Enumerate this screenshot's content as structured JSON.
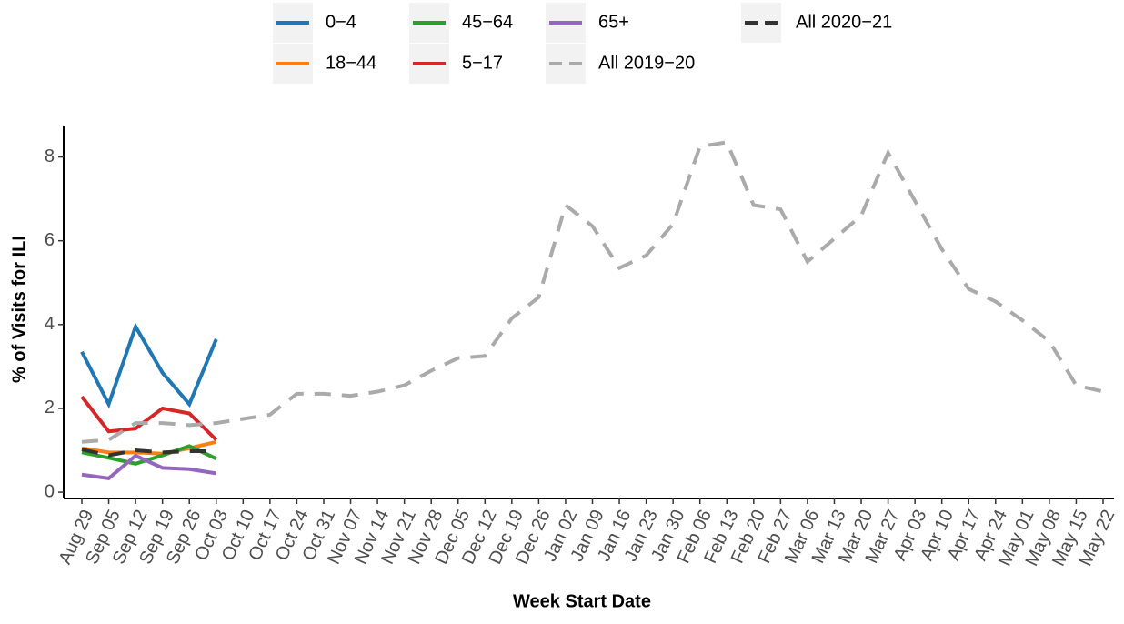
{
  "chart_data": {
    "type": "line",
    "x_label": "Week Start Date",
    "y_label": "% of Visits for ILI",
    "categories": [
      "Aug 29",
      "Sep 05",
      "Sep 12",
      "Sep 19",
      "Sep 26",
      "Oct 03",
      "Oct 10",
      "Oct 17",
      "Oct 24",
      "Oct 31",
      "Nov 07",
      "Nov 14",
      "Nov 21",
      "Nov 28",
      "Dec 05",
      "Dec 12",
      "Dec 19",
      "Dec 26",
      "Jan 02",
      "Jan 09",
      "Jan 16",
      "Jan 23",
      "Jan 30",
      "Feb 06",
      "Feb 13",
      "Feb 20",
      "Feb 27",
      "Mar 06",
      "Mar 13",
      "Mar 20",
      "Mar 27",
      "Apr 03",
      "Apr 10",
      "Apr 17",
      "Apr 24",
      "May 01",
      "May 08",
      "May 15",
      "May 22"
    ],
    "series": [
      {
        "name": "0−4",
        "color": "#1f77b4",
        "dashed": false,
        "values": [
          3.35,
          2.1,
          3.95,
          2.85,
          2.1,
          3.65,
          null,
          null,
          null,
          null,
          null,
          null,
          null,
          null,
          null,
          null,
          null,
          null,
          null,
          null,
          null,
          null,
          null,
          null,
          null,
          null,
          null,
          null,
          null,
          null,
          null,
          null,
          null,
          null,
          null,
          null,
          null,
          null,
          null
        ]
      },
      {
        "name": "18−44",
        "color": "#ff7f0e",
        "dashed": false,
        "values": [
          1.05,
          0.95,
          0.95,
          0.92,
          1.05,
          1.2,
          null,
          null,
          null,
          null,
          null,
          null,
          null,
          null,
          null,
          null,
          null,
          null,
          null,
          null,
          null,
          null,
          null,
          null,
          null,
          null,
          null,
          null,
          null,
          null,
          null,
          null,
          null,
          null,
          null,
          null,
          null,
          null,
          null
        ]
      },
      {
        "name": "45−64",
        "color": "#2ca02c",
        "dashed": false,
        "values": [
          0.95,
          0.82,
          0.68,
          0.88,
          1.1,
          0.8,
          null,
          null,
          null,
          null,
          null,
          null,
          null,
          null,
          null,
          null,
          null,
          null,
          null,
          null,
          null,
          null,
          null,
          null,
          null,
          null,
          null,
          null,
          null,
          null,
          null,
          null,
          null,
          null,
          null,
          null,
          null,
          null,
          null
        ]
      },
      {
        "name": "5−17",
        "color": "#d62728",
        "dashed": false,
        "values": [
          2.28,
          1.45,
          1.52,
          2.0,
          1.88,
          1.25,
          null,
          null,
          null,
          null,
          null,
          null,
          null,
          null,
          null,
          null,
          null,
          null,
          null,
          null,
          null,
          null,
          null,
          null,
          null,
          null,
          null,
          null,
          null,
          null,
          null,
          null,
          null,
          null,
          null,
          null,
          null,
          null,
          null
        ]
      },
      {
        "name": "65+",
        "color": "#9467bd",
        "dashed": false,
        "values": [
          0.42,
          0.33,
          0.87,
          0.58,
          0.55,
          0.45,
          null,
          null,
          null,
          null,
          null,
          null,
          null,
          null,
          null,
          null,
          null,
          null,
          null,
          null,
          null,
          null,
          null,
          null,
          null,
          null,
          null,
          null,
          null,
          null,
          null,
          null,
          null,
          null,
          null,
          null,
          null,
          null,
          null
        ]
      },
      {
        "name": "All 2019−20",
        "color": "#aaaaaa",
        "dashed": true,
        "values": [
          1.2,
          1.25,
          1.65,
          1.65,
          1.6,
          1.65,
          1.75,
          1.85,
          2.35,
          2.35,
          2.3,
          2.4,
          2.55,
          2.9,
          3.2,
          3.25,
          4.15,
          4.65,
          6.85,
          6.35,
          5.35,
          5.65,
          6.4,
          8.25,
          8.35,
          6.85,
          6.75,
          5.5,
          6.05,
          6.6,
          8.1,
          6.95,
          5.8,
          4.85,
          4.55,
          4.1,
          3.6,
          2.55,
          2.4
        ]
      },
      {
        "name": "All 2020−21",
        "color": "#333333",
        "dashed": true,
        "values": [
          1.02,
          0.88,
          1.0,
          0.95,
          0.98,
          0.98,
          null,
          null,
          null,
          null,
          null,
          null,
          null,
          null,
          null,
          null,
          null,
          null,
          null,
          null,
          null,
          null,
          null,
          null,
          null,
          null,
          null,
          null,
          null,
          null,
          null,
          null,
          null,
          null,
          null,
          null,
          null,
          null,
          null
        ]
      }
    ],
    "ylim": [
      -0.15,
      8.75
    ],
    "yticks": [
      0,
      2,
      4,
      6,
      8
    ],
    "grid": false,
    "legend": "top"
  }
}
